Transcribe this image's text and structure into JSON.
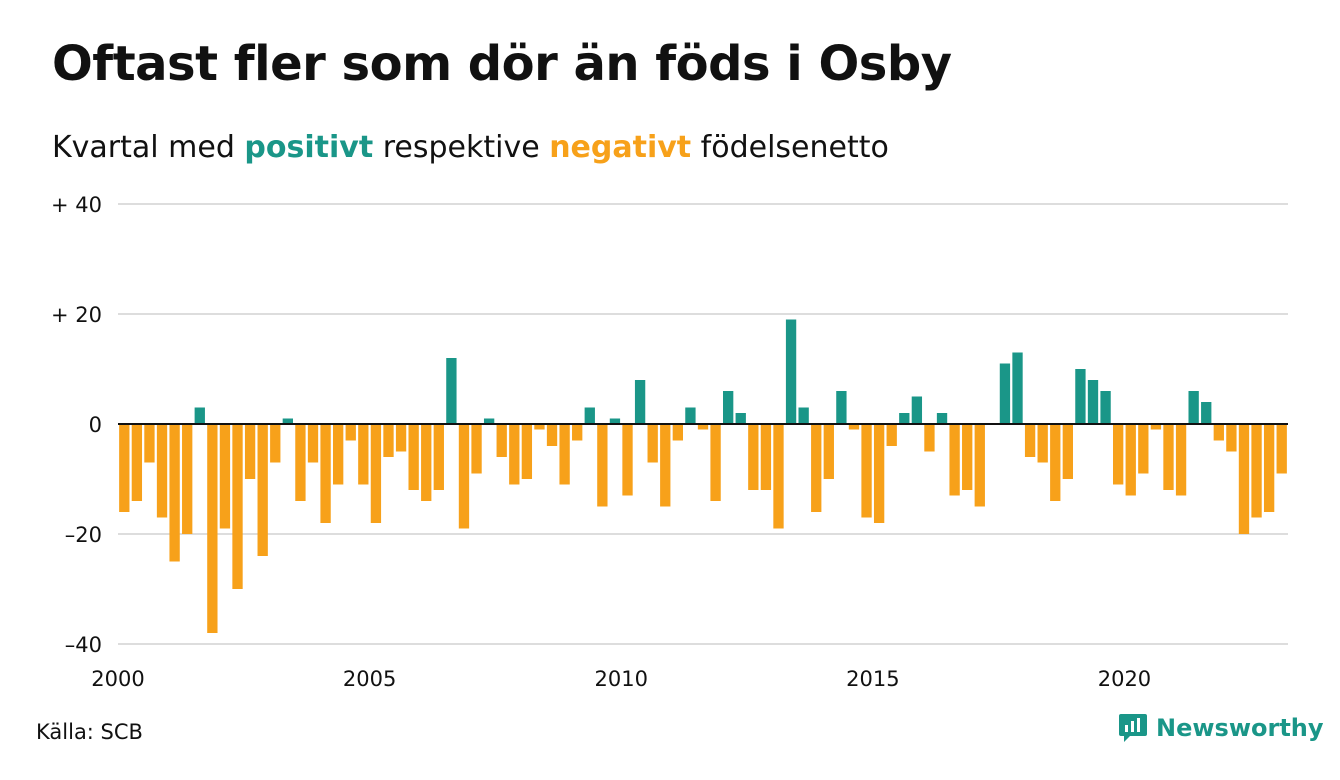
{
  "title": "Oftast fler som dör än föds i Osby",
  "subtitle": {
    "prefix": "Kvartal med ",
    "positive_word": "positivt",
    "middle": " respektive ",
    "negative_word": "negativt",
    "suffix": " födelsenetto"
  },
  "source": "Källa: SCB",
  "brand": {
    "name": "Newsworthy",
    "icon": "newsworthy-logo-icon"
  },
  "colors": {
    "positive": "#1a9688",
    "negative": "#f7a11a",
    "grid": "#dddddd",
    "zero_line": "#111111"
  },
  "chart_data": {
    "type": "bar",
    "title": "Oftast fler som dör än föds i Osby",
    "subtitle": "Kvartal med positivt respektive negativt födelsenetto",
    "xlabel": "",
    "ylabel": "",
    "ylim": [
      -40,
      40
    ],
    "grid": true,
    "y_ticks": [
      {
        "value": 40,
        "label": "+ 40"
      },
      {
        "value": 20,
        "label": "+ 20"
      },
      {
        "value": 0,
        "label": "0"
      },
      {
        "value": -20,
        "label": "–20"
      },
      {
        "value": -40,
        "label": "–40"
      }
    ],
    "x_ticks": [
      {
        "year": 2000,
        "label": "2000"
      },
      {
        "year": 2005,
        "label": "2005"
      },
      {
        "year": 2010,
        "label": "2010"
      },
      {
        "year": 2015,
        "label": "2015"
      },
      {
        "year": 2020,
        "label": "2020"
      }
    ],
    "start_year": 2000,
    "start_quarter": 1,
    "values": [
      -16,
      -14,
      -7,
      -17,
      -25,
      -20,
      3,
      -38,
      -19,
      -30,
      -10,
      -24,
      -7,
      1,
      -14,
      -7,
      -18,
      -11,
      -3,
      -11,
      -18,
      -6,
      -5,
      -12,
      -14,
      -12,
      12,
      -19,
      -9,
      1,
      -6,
      -11,
      -10,
      -1,
      -4,
      -11,
      -3,
      3,
      -15,
      1,
      -13,
      8,
      -7,
      -15,
      -3,
      3,
      -1,
      -14,
      6,
      2,
      -12,
      -12,
      -19,
      19,
      3,
      -16,
      -10,
      6,
      -1,
      -17,
      -18,
      -4,
      2,
      5,
      -5,
      2,
      -13,
      -12,
      -15,
      0,
      11,
      13,
      -6,
      -7,
      -14,
      -10,
      10,
      8,
      6,
      -11,
      -13,
      -9,
      -1,
      -12,
      -13,
      6,
      4,
      -3,
      -5,
      -20,
      -17,
      -16,
      -9
    ]
  }
}
